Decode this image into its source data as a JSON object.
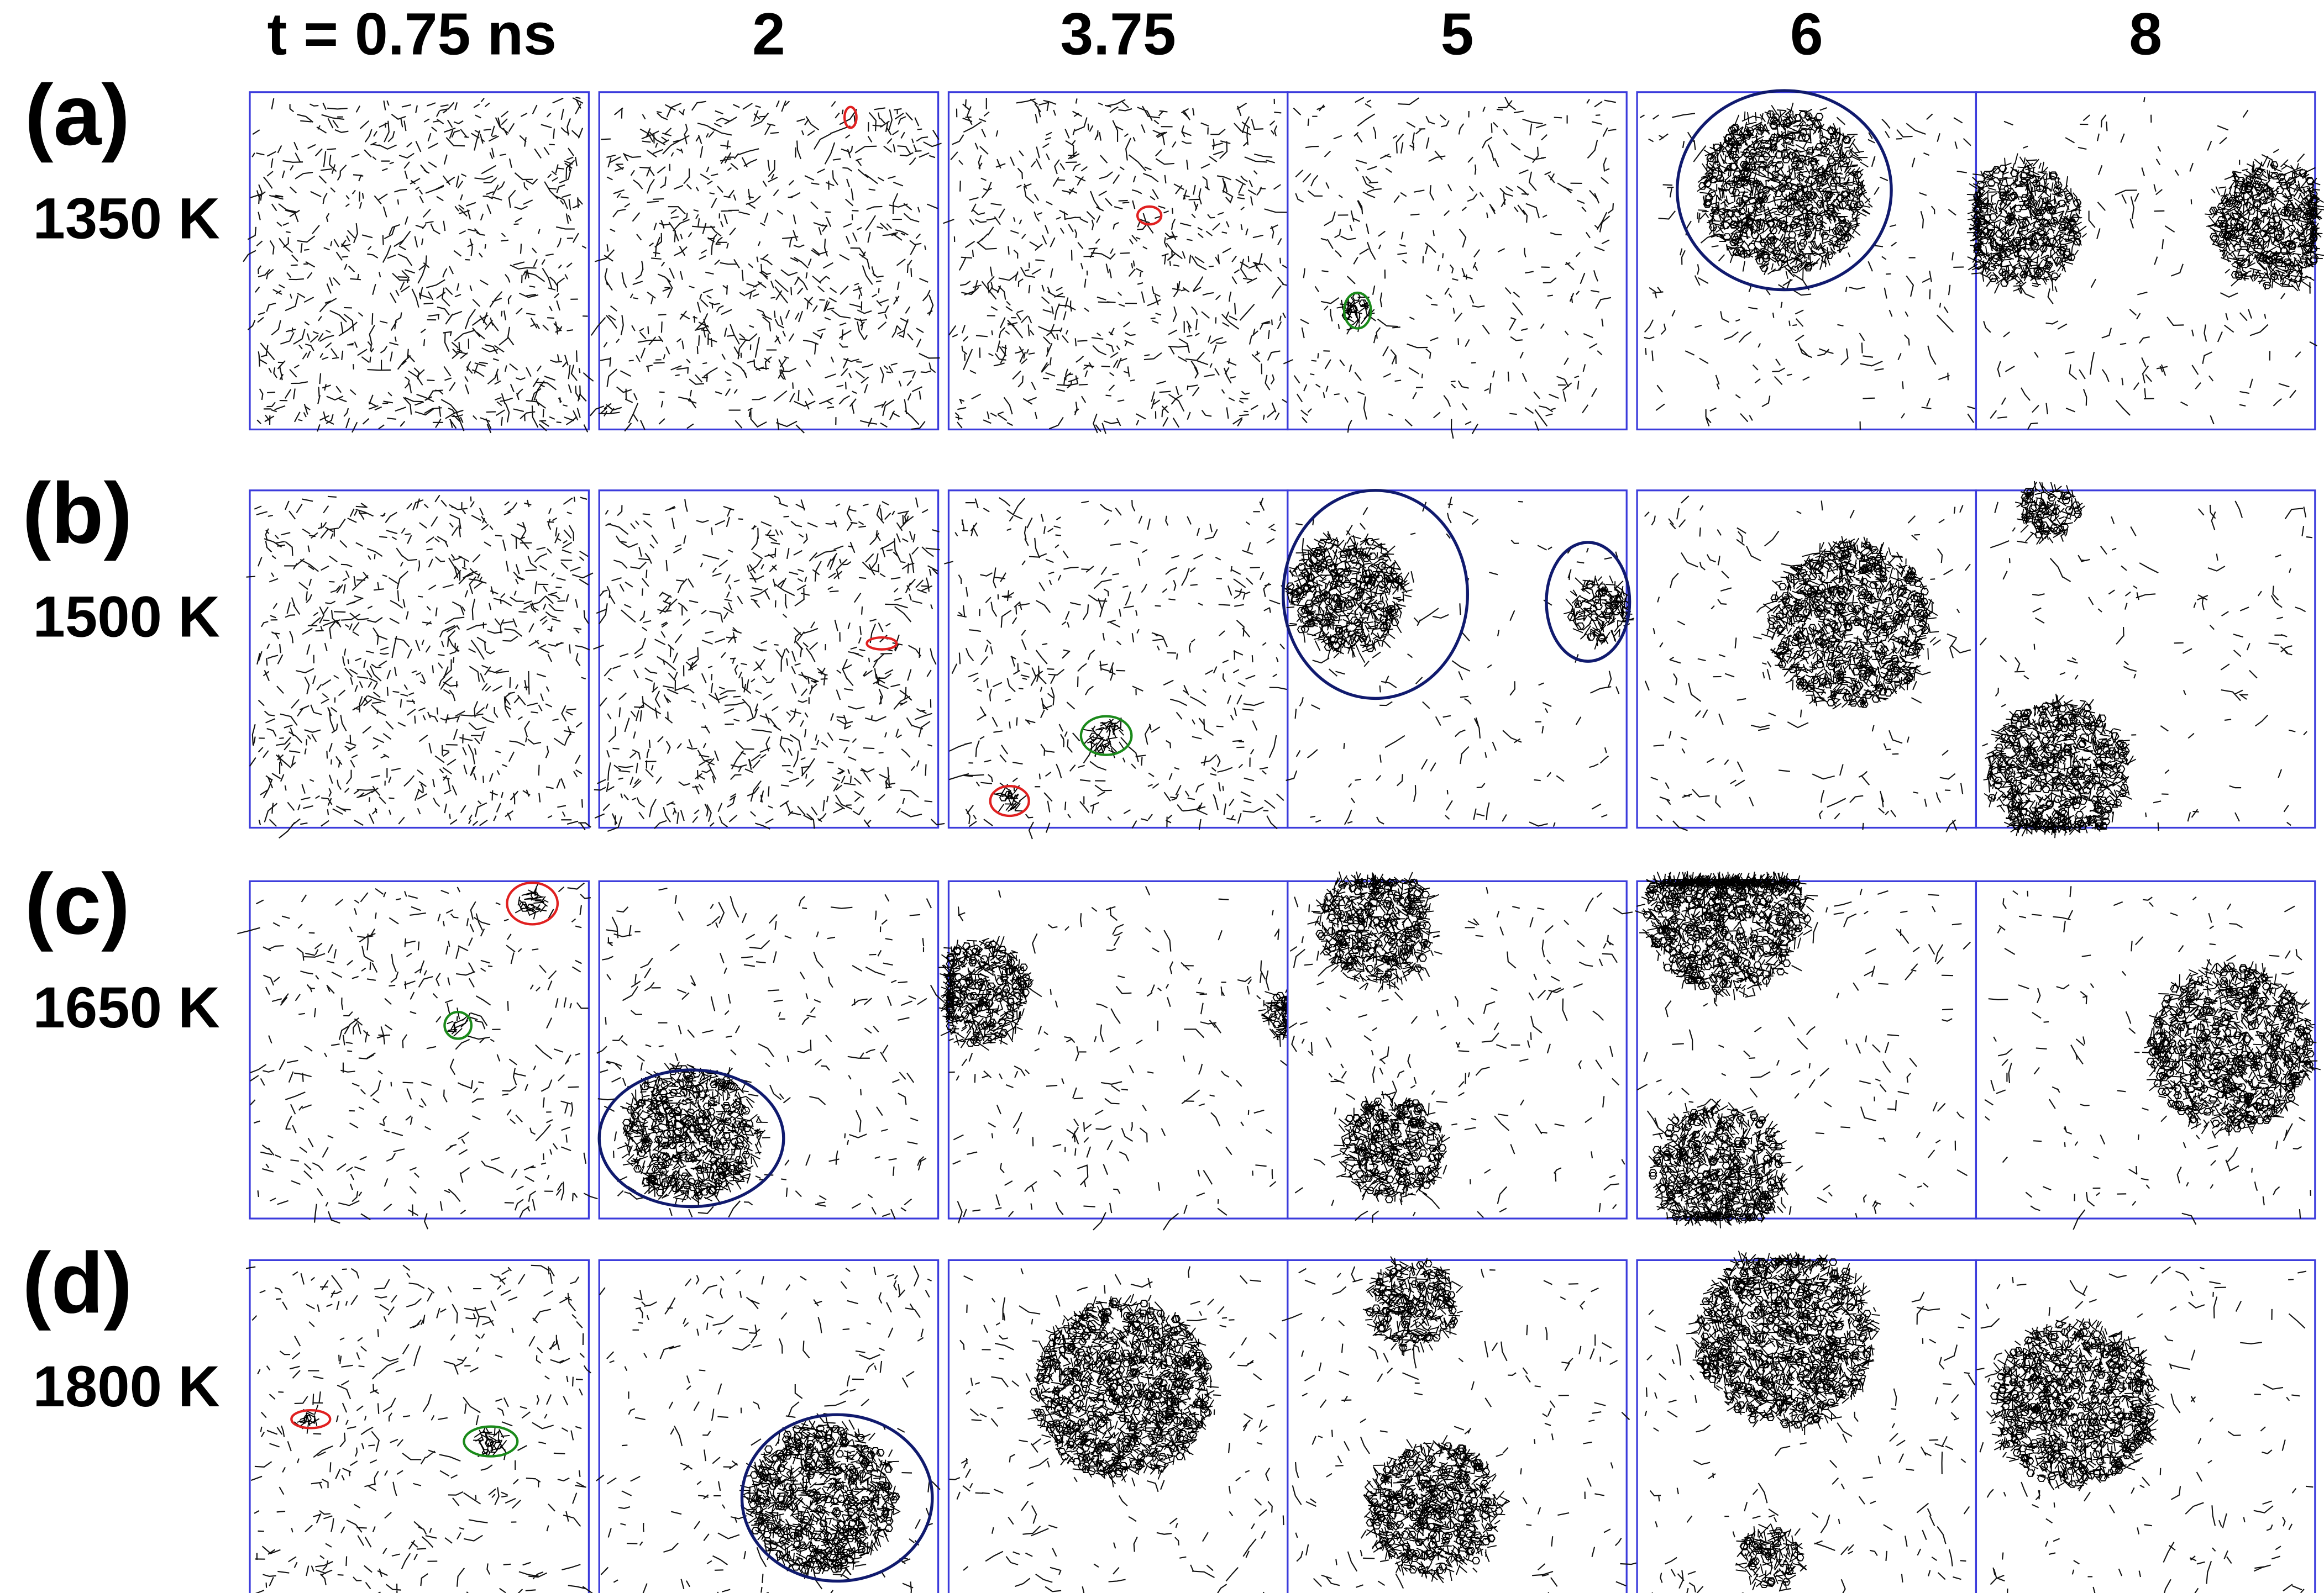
{
  "columns": [
    "t = 0.75 ns",
    "2",
    "3.75",
    "5",
    "6",
    "8"
  ],
  "rows": [
    {
      "label": "(a)",
      "temperature": "1350 K"
    },
    {
      "label": "(b)",
      "temperature": "1500 K"
    },
    {
      "label": "(c)",
      "temperature": "1650 K"
    },
    {
      "label": "(d)",
      "temperature": "1800 K"
    }
  ]
}
